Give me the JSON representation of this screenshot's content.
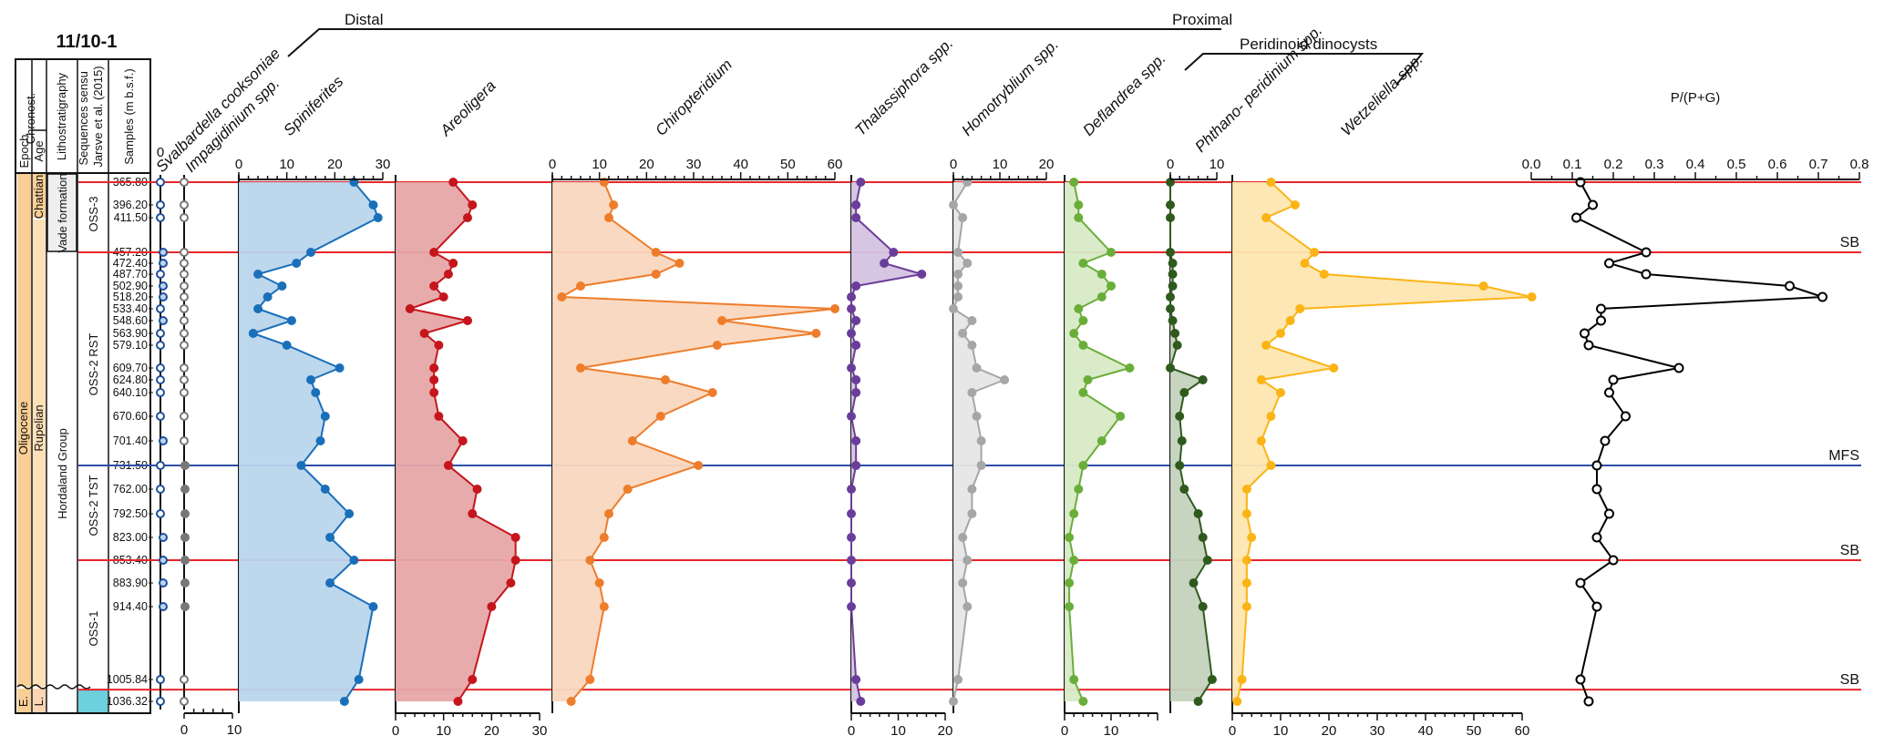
{
  "figure": {
    "well_title": "11/10-1",
    "column_headers": {
      "chronost": "Chronost.",
      "epoch": "Epoch",
      "age": "Age",
      "lithostratigraphy": "Lithostratigraphy",
      "sequences": "Sequences sensu Jarsve et al. (2015)",
      "samples": "Samples (m b.s.f.)"
    },
    "epochs": [
      {
        "label": "Oligocene",
        "color": "#f9cf95"
      },
      {
        "label": "E.",
        "color": "#f9cf95"
      }
    ],
    "ages": [
      {
        "label": "Chattian",
        "color": "#fce1b8"
      },
      {
        "label": "Rupelian",
        "color": "#fce1b8"
      },
      {
        "label": "L.",
        "color": "#fcd6b4"
      }
    ],
    "lithostratigraphy": [
      {
        "label": "Vade formation",
        "color": "#efefef"
      },
      {
        "label": "Hordaland Group",
        "color": "#ffffff"
      }
    ],
    "sequences": [
      {
        "label": "OSS-3"
      },
      {
        "label": "OSS-2 RST"
      },
      {
        "label": "OSS-2 TST"
      },
      {
        "label": "OSS-1"
      },
      {
        "label": "",
        "color": "#6cd0dd"
      }
    ],
    "brackets": {
      "distal": "Distal",
      "proximal": "Proximal",
      "peridinoid": "Peridinoid dinocysts"
    },
    "surfaces": [
      {
        "depth": 365.8,
        "label": "",
        "color": "#e8262a"
      },
      {
        "depth": 457.2,
        "label": "SB",
        "color": "#e8262a"
      },
      {
        "depth": 731.5,
        "label": "MFS",
        "color": "#2e4fa5"
      },
      {
        "depth": 853.4,
        "label": "SB",
        "color": "#e8262a"
      },
      {
        "depth": 1020.0,
        "label": "SB",
        "color": "#e8262a"
      }
    ]
  },
  "chart_data": {
    "type": "area",
    "title": "11/10-1",
    "ylabel": "Samples (m b.s.f.)",
    "depths": [
      365.8,
      396.2,
      411.5,
      457.2,
      472.4,
      487.7,
      502.9,
      518.2,
      533.4,
      548.6,
      563.9,
      579.1,
      609.7,
      624.8,
      640.1,
      670.6,
      701.4,
      731.5,
      762.0,
      792.5,
      823.0,
      853.4,
      883.9,
      914.4,
      1005.84,
      1036.32
    ],
    "depth_labels": [
      "365.80",
      "396.20",
      "411.50",
      "457.20",
      "472.40",
      "487.70",
      "502.90",
      "518.20",
      "533.40",
      "548.60",
      "563.90",
      "579.10",
      "609.70",
      "624.80",
      "640.10",
      "670.60",
      "701.40",
      "731.50",
      "762.00",
      "792.50",
      "823.00",
      "853.40",
      "883.90",
      "914.40",
      "1005.84",
      "1036.32"
    ],
    "series": [
      {
        "name": "Svalbardella cooksoniae",
        "kind": "presence",
        "color": "#1f4e9c",
        "fill": "#bcd6ee",
        "present": [
          0,
          0,
          0,
          1,
          1,
          0,
          1,
          1,
          0,
          1,
          0,
          0,
          0,
          0,
          0,
          0,
          1,
          0,
          0,
          0,
          1,
          1,
          1,
          1,
          0,
          0
        ]
      },
      {
        "name": "Impagidinium spp.",
        "kind": "presence",
        "color": "#777777",
        "fill": "#777777",
        "present": [
          0,
          0,
          0,
          0,
          0,
          0,
          0,
          0,
          0,
          0,
          0,
          0,
          0,
          0,
          0,
          0,
          0,
          1,
          1,
          1,
          1,
          1,
          1,
          1,
          0,
          0
        ],
        "xticks": [
          0,
          10
        ],
        "xlim": [
          0,
          10
        ]
      },
      {
        "name": "Spiniferites",
        "color": "#1a6fb9",
        "fill": "#b9d5ec",
        "xlim": [
          0,
          30
        ],
        "xticks": [
          0,
          10,
          20,
          30
        ],
        "values": [
          24,
          28,
          29,
          15,
          12,
          4,
          9,
          6,
          4,
          11,
          3,
          10,
          21,
          15,
          16,
          18,
          17,
          13,
          18,
          23,
          19,
          24,
          19,
          28,
          25,
          22
        ]
      },
      {
        "name": "Areoligera",
        "color": "#c4161c",
        "fill": "#e6a6a8",
        "xlim": [
          0,
          30
        ],
        "xticks": [
          0,
          10,
          20,
          30
        ],
        "values": [
          12,
          16,
          15,
          8,
          12,
          11,
          8,
          10,
          3,
          15,
          6,
          9,
          8,
          8,
          8,
          9,
          14,
          11,
          17,
          16,
          25,
          25,
          24,
          20,
          16,
          13
        ]
      },
      {
        "name": "Chiropteridium",
        "color": "#ee7d2b",
        "fill": "#f9d7bf",
        "xlim": [
          0,
          60
        ],
        "xticks": [
          0,
          10,
          20,
          30,
          40,
          50,
          60
        ],
        "values": [
          11,
          13,
          12,
          22,
          27,
          22,
          6,
          2,
          60,
          36,
          56,
          35,
          6,
          24,
          34,
          23,
          17,
          31,
          16,
          12,
          11,
          8,
          10,
          11,
          8,
          4
        ]
      },
      {
        "name": "Thalassiphora spp.",
        "color": "#6a3d9a",
        "fill": "#d4c3e1",
        "xlim": [
          0,
          20
        ],
        "xticks": [
          0,
          10,
          20
        ],
        "values": [
          2,
          1,
          1,
          9,
          7,
          15,
          1,
          0,
          0,
          1,
          0,
          1,
          0,
          1,
          1,
          0,
          1,
          1,
          0,
          0,
          0,
          0,
          0,
          0,
          1,
          2
        ]
      },
      {
        "name": "Homotryblium spp.",
        "color": "#a6a6a6",
        "fill": "#e6e6e6",
        "xlim": [
          0,
          20
        ],
        "xticks": [
          0,
          10,
          20
        ],
        "values": [
          3,
          0,
          2,
          1,
          3,
          1,
          1,
          1,
          0,
          4,
          2,
          4,
          5,
          11,
          4,
          5,
          6,
          6,
          4,
          4,
          2,
          3,
          2,
          3,
          1,
          0
        ]
      },
      {
        "name": "Deflandrea spp.",
        "color": "#6aae3a",
        "fill": "#d7eac6",
        "xlim": [
          0,
          20
        ],
        "xticks": [
          0,
          10
        ],
        "values": [
          2,
          3,
          3,
          10,
          4,
          8,
          10,
          8,
          3,
          4,
          2,
          4,
          14,
          5,
          4,
          12,
          8,
          4,
          3,
          2,
          1,
          2,
          1,
          1,
          2,
          4
        ]
      },
      {
        "name": "Phthano- peridinium spp.",
        "color": "#2f5a1e",
        "fill": "#c3d2bd",
        "xlim": [
          0,
          10
        ],
        "xticks": [
          0,
          10
        ],
        "values": [
          0,
          0,
          0,
          0,
          0.5,
          0.5,
          0.5,
          0,
          0,
          0.5,
          1,
          1.5,
          0,
          7,
          3,
          2,
          2.5,
          2,
          3,
          6,
          7,
          8,
          5,
          7,
          9,
          6
        ]
      },
      {
        "name": "Wetzeliella spp.",
        "color": "#fbb416",
        "fill": "#fde6b0",
        "xlim": [
          0,
          60
        ],
        "xticks": [
          0,
          10,
          20,
          30,
          40,
          50,
          60
        ],
        "values": [
          8,
          13,
          7,
          17,
          15,
          19,
          52,
          62,
          14,
          12,
          10,
          7,
          21,
          6,
          10,
          8,
          6,
          8,
          3,
          3,
          4,
          3,
          3,
          3,
          2,
          1
        ]
      },
      {
        "name": "P/(P+G)",
        "color": "#000000",
        "fill": "none",
        "xlim": [
          0,
          0.8
        ],
        "xticks": [
          "0.0",
          "0.1",
          "0.2",
          "0.3",
          "0.4",
          "0.5",
          "0.6",
          "0.7",
          "0.8"
        ],
        "values": [
          0.12,
          0.15,
          0.11,
          0.28,
          0.19,
          0.28,
          0.63,
          0.71,
          0.17,
          0.17,
          0.13,
          0.14,
          0.36,
          0.2,
          0.19,
          0.23,
          0.18,
          0.16,
          0.16,
          0.19,
          0.16,
          0.2,
          0.12,
          0.16,
          0.12,
          0.14
        ]
      }
    ]
  }
}
